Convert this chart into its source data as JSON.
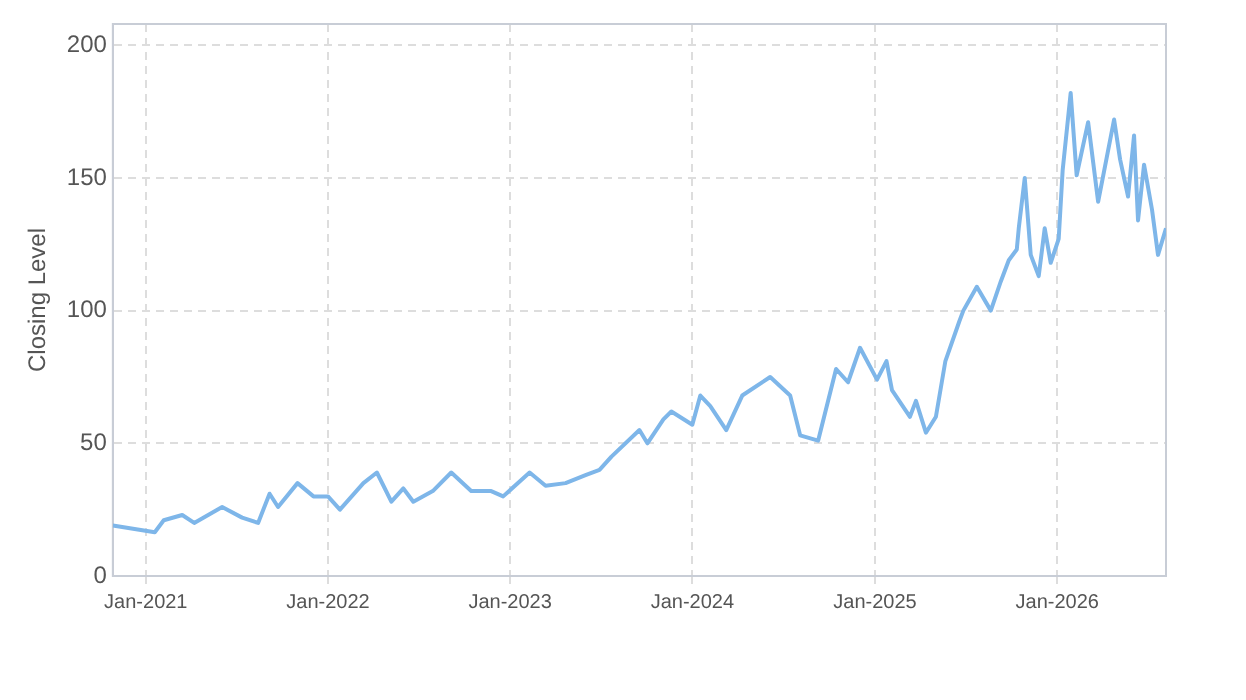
{
  "chart_data": {
    "type": "line",
    "ylabel": "Closing Level",
    "xlim": [
      "2020-10-27",
      "2026-08-07"
    ],
    "xticks": [
      {
        "value": "2021-01-01",
        "label": "Jan-2021"
      },
      {
        "value": "2022-01-01",
        "label": "Jan-2022"
      },
      {
        "value": "2023-01-01",
        "label": "Jan-2023"
      },
      {
        "value": "2024-01-01",
        "label": "Jan-2024"
      },
      {
        "value": "2025-01-01",
        "label": "Jan-2025"
      },
      {
        "value": "2026-01-01",
        "label": "Jan-2026"
      }
    ],
    "ylim": [
      0,
      208
    ],
    "yticks": [
      0,
      50,
      100,
      150,
      200
    ],
    "grid": true,
    "legend": false,
    "marker": "none",
    "line_style": "solid",
    "x": [
      "2020-10-27",
      "2021-01-19",
      "2021-02-06",
      "2021-03-15",
      "2021-04-08",
      "2021-06-03",
      "2021-07-13",
      "2021-08-14",
      "2021-09-06",
      "2021-09-23",
      "2021-11-01",
      "2021-12-03",
      "2022-01-01",
      "2022-01-25",
      "2022-03-13",
      "2022-04-09",
      "2022-05-08",
      "2022-06-01",
      "2022-06-21",
      "2022-07-30",
      "2022-09-05",
      "2022-10-15",
      "2022-11-24",
      "2022-12-18",
      "2023-02-09",
      "2023-03-13",
      "2023-04-22",
      "2023-06-01",
      "2023-06-29",
      "2023-07-23",
      "2023-09-17",
      "2023-10-03",
      "2023-11-04",
      "2023-11-20",
      "2024-01-01",
      "2024-01-17",
      "2024-02-06",
      "2024-03-09",
      "2024-04-10",
      "2024-06-05",
      "2024-07-15",
      "2024-08-04",
      "2024-09-09",
      "2024-10-15",
      "2024-11-08",
      "2024-12-02",
      "2025-01-05",
      "2025-01-24",
      "2025-02-04",
      "2025-03-12",
      "2025-03-24",
      "2025-04-13",
      "2025-05-03",
      "2025-05-22",
      "2025-06-19",
      "2025-06-27",
      "2025-07-24",
      "2025-08-21",
      "2025-09-10",
      "2025-09-26",
      "2025-10-12",
      "2025-10-16",
      "2025-10-28",
      "2025-11-09",
      "2025-11-25",
      "2025-12-07",
      "2025-12-19",
      "2026-01-04",
      "2026-01-12",
      "2026-01-28",
      "2026-02-09",
      "2026-03-04",
      "2026-03-24",
      "2026-04-25",
      "2026-05-07",
      "2026-05-23",
      "2026-06-04",
      "2026-06-12",
      "2026-06-24",
      "2026-07-10",
      "2026-07-22",
      "2026-08-07"
    ],
    "series": [
      {
        "color": "#7eb6e9",
        "values": [
          19,
          16.5,
          21,
          23,
          20,
          26,
          22,
          20,
          31,
          26,
          35,
          30,
          30,
          25,
          35,
          39,
          28,
          33,
          28,
          32,
          39,
          32,
          32,
          30,
          39,
          34,
          35,
          38,
          40,
          45,
          55,
          50,
          59,
          62,
          57,
          68,
          64,
          55,
          68,
          75,
          68,
          53,
          51,
          78,
          73,
          86,
          74,
          81,
          70,
          60,
          66,
          54,
          60,
          81,
          96,
          100,
          109,
          100,
          111,
          119,
          123,
          131,
          150,
          121,
          113,
          131,
          118,
          127,
          153,
          182,
          151,
          171,
          141,
          172,
          157,
          143,
          166,
          134,
          155,
          138,
          121,
          131
        ]
      }
    ]
  }
}
